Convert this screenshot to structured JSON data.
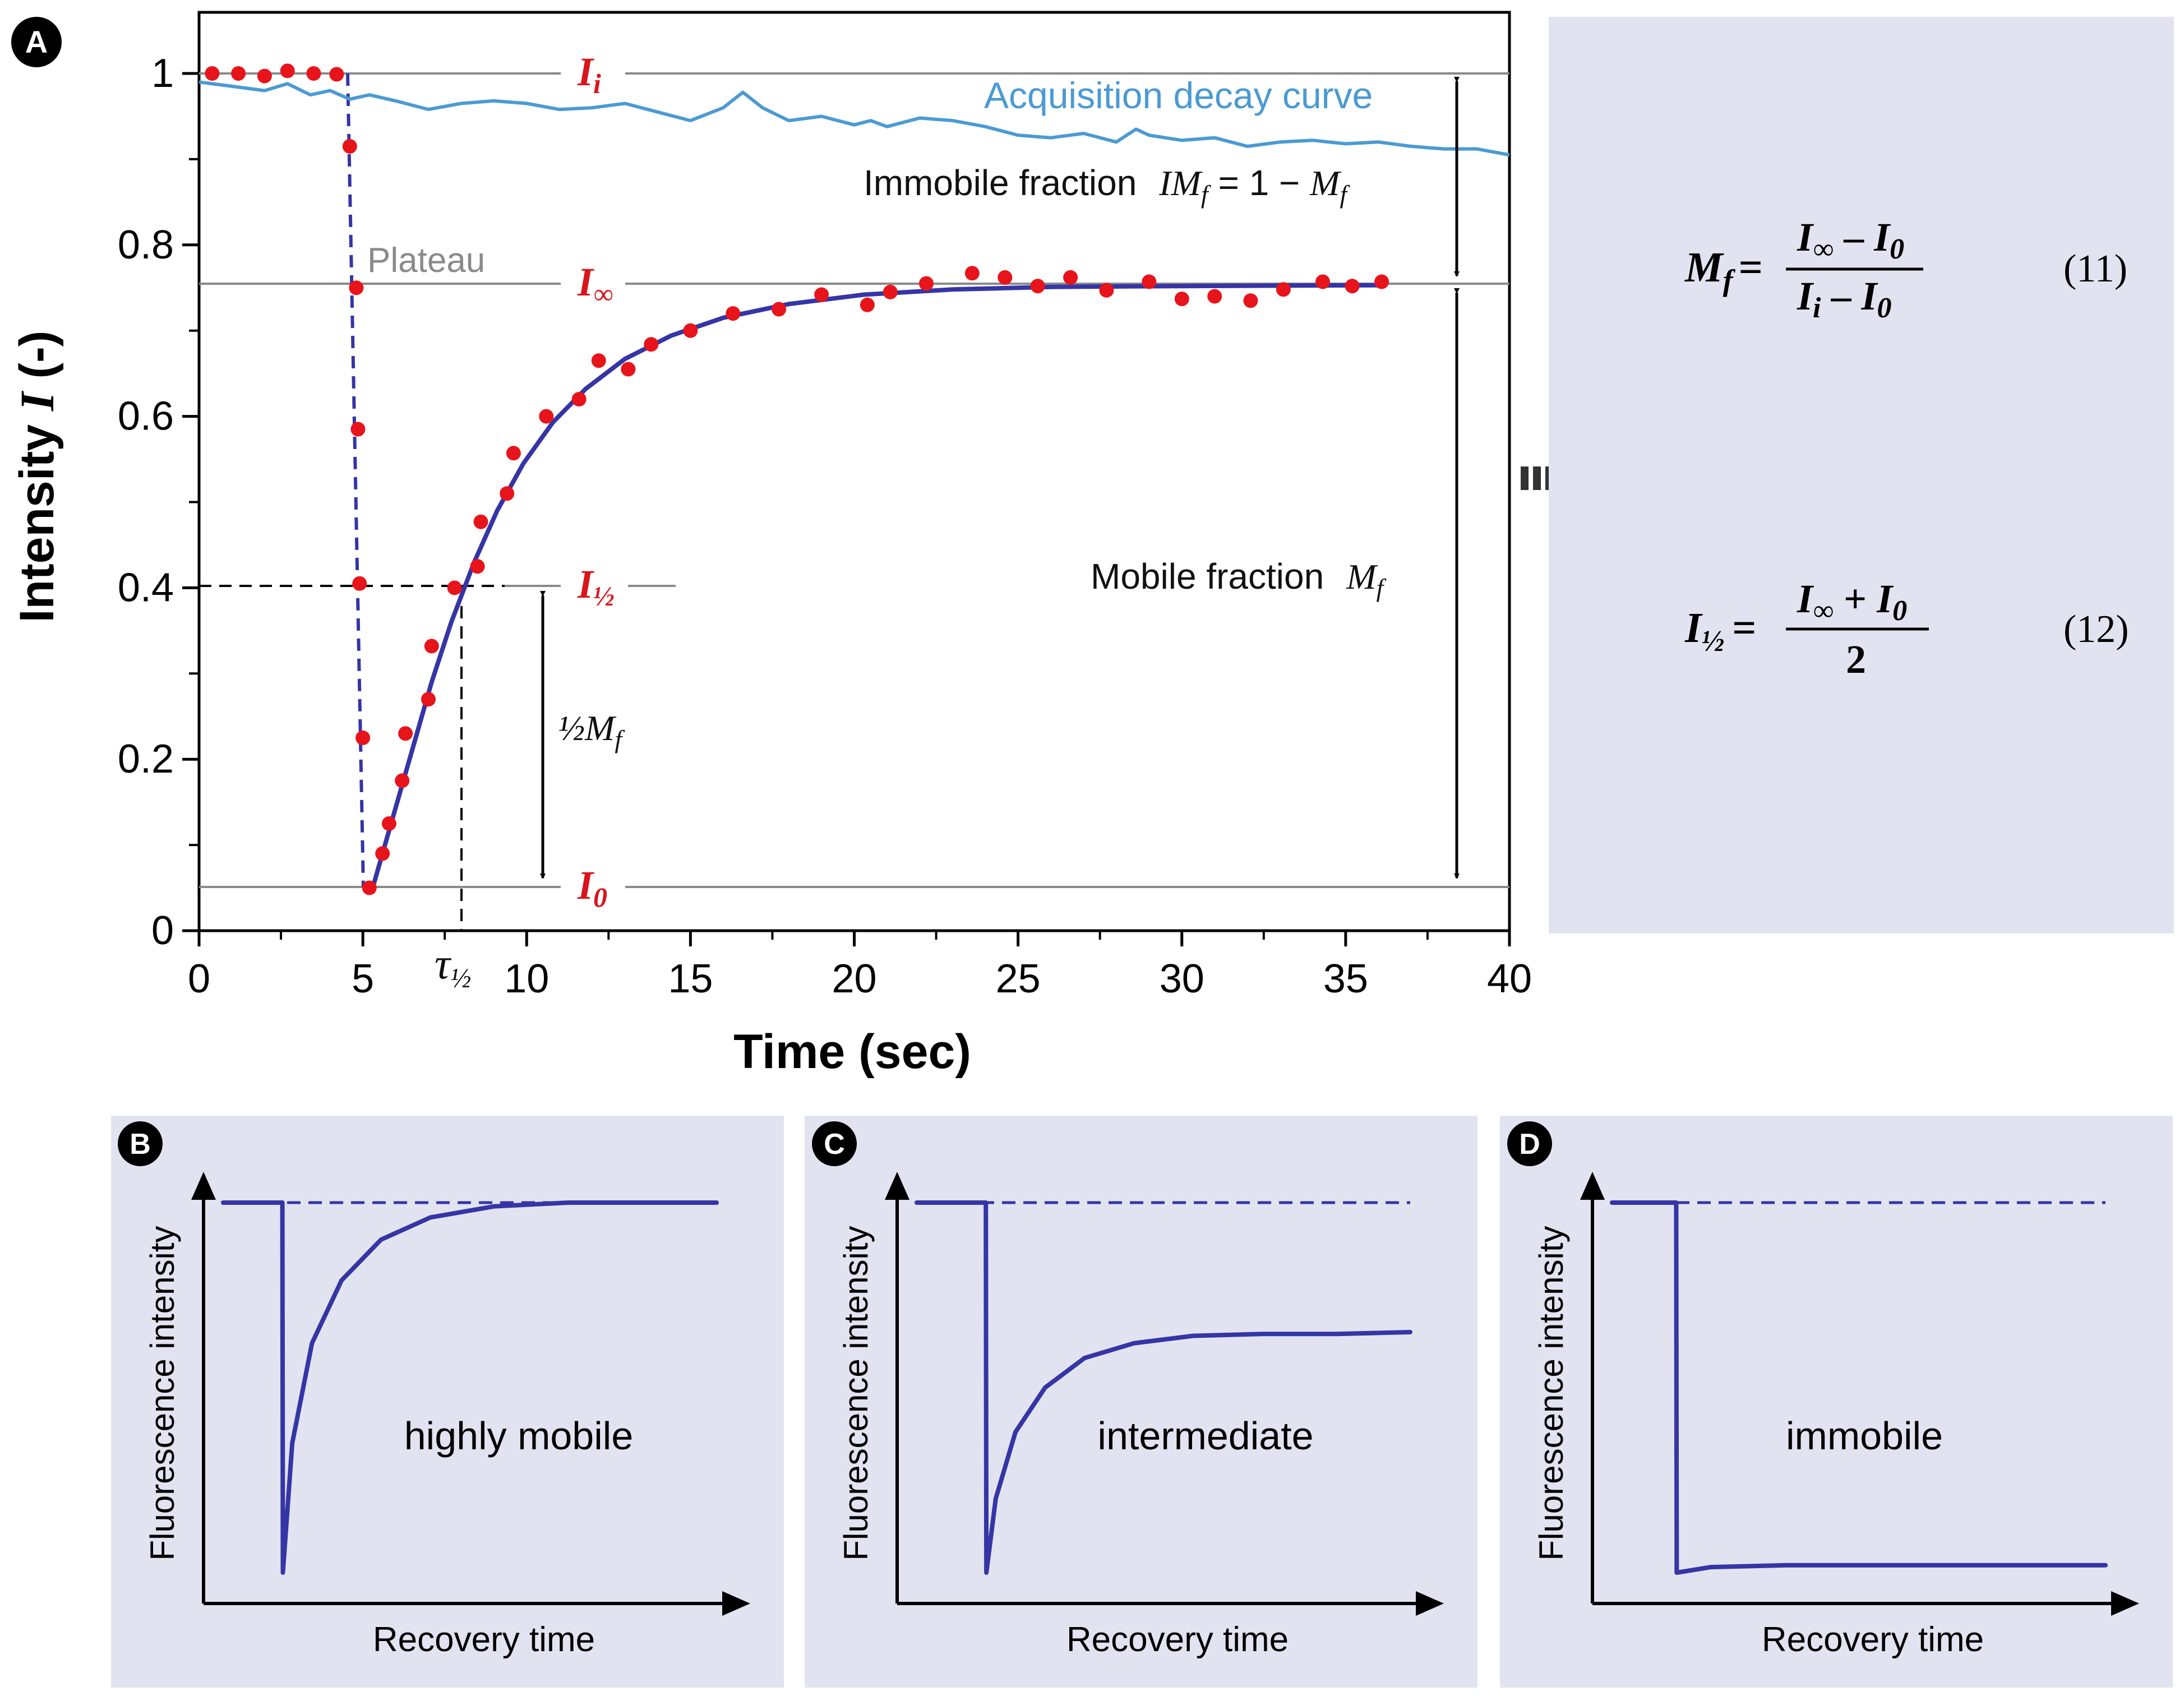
{
  "panel_labels": {
    "a": "A",
    "b": "B",
    "c": "C",
    "d": "D"
  },
  "colors": {
    "data_points": "#e8141b",
    "fit_curve": "#3535a5",
    "decay_curve": "#4b9ad3",
    "reference_lines": "#8a8a8a",
    "panel_background": "#e1e4f0",
    "red_label": "#d9151c"
  },
  "main_chart": {
    "xlabel": "Time (sec)",
    "ylabel_text": "Intensity ",
    "ylabel_symbol": "I",
    "ylabel_unit": " (-)",
    "x_ticks": [
      "0",
      "5",
      "10",
      "15",
      "20",
      "25",
      "30",
      "35",
      "40"
    ],
    "y_ticks": [
      "0",
      "0.2",
      "0.4",
      "0.6",
      "0.8",
      "1"
    ],
    "annotations": {
      "decay_curve_label": "Acquisition decay curve",
      "plateau": "Plateau",
      "immobile_text": "Immobile fraction",
      "immobile_im": "IM",
      "immobile_sub": "f",
      "immobile_eq": " = 1 − ",
      "immobile_m": "M",
      "immobile_m_sub": "f",
      "mobile_text": "Mobile fraction",
      "mobile_m": "M",
      "mobile_sub": "f",
      "half_frac": "½",
      "half_m": "M",
      "half_sub": "f",
      "tau": "τ",
      "tau_sub": "½",
      "i_i": "I",
      "i_i_sub": "i",
      "i_inf": "I",
      "i_inf_sub": "∞",
      "i_half": "I",
      "i_half_sub": "½",
      "i_0": "I",
      "i_0_sub": "0"
    }
  },
  "chart_data": [
    {
      "type": "scatter",
      "xlabel": "Time (sec)",
      "ylabel": "Intensity I (-)",
      "xlim": [
        0,
        40
      ],
      "ylim": [
        0,
        1.07
      ],
      "grid": false,
      "series": [
        {
          "x": [
            0.4,
            1.2,
            2.0,
            2.7,
            3.5,
            4.2,
            4.6,
            4.8,
            4.85,
            4.9,
            5.0,
            5.2,
            5.6,
            5.8,
            6.2,
            6.3,
            7.0,
            7.1,
            7.8,
            8.5,
            8.6,
            9.4,
            9.6,
            10.6,
            11.6,
            12.2,
            13.1,
            13.8,
            15.0,
            16.3,
            17.7,
            19.0,
            20.4,
            21.1,
            22.2,
            23.6,
            24.6,
            25.6,
            26.6,
            27.7,
            29.0,
            30.0,
            31.0,
            32.1,
            33.1,
            34.3,
            35.2,
            36.1
          ],
          "y": [
            1.0,
            1.0,
            0.997,
            1.003,
            1.0,
            0.999,
            0.915,
            0.75,
            0.585,
            0.405,
            0.225,
            0.05,
            0.09,
            0.125,
            0.175,
            0.23,
            0.27,
            0.332,
            0.4,
            0.425,
            0.477,
            0.51,
            0.557,
            0.6,
            0.62,
            0.665,
            0.655,
            0.684,
            0.7,
            0.72,
            0.725,
            0.742,
            0.73,
            0.745,
            0.755,
            0.767,
            0.762,
            0.752,
            0.762,
            0.747,
            0.757,
            0.737,
            0.74,
            0.735,
            0.748,
            0.757,
            0.752,
            0.757
          ]
        },
        {
          "type": "line",
          "x": [
            5.3,
            5.9,
            6.5,
            7.1,
            7.7,
            8.4,
            9.1,
            9.9,
            10.8,
            11.8,
            13.0,
            14.4,
            16.0,
            18.0,
            20.3,
            23.0,
            26.0,
            30.0,
            36.0
          ],
          "y": [
            0.05,
            0.13,
            0.21,
            0.29,
            0.36,
            0.43,
            0.49,
            0.545,
            0.593,
            0.632,
            0.667,
            0.694,
            0.715,
            0.731,
            0.742,
            0.748,
            0.751,
            0.752,
            0.753
          ]
        },
        {
          "name": "Acquisition decay curve",
          "type": "line",
          "x": [
            0,
            1,
            2,
            2.7,
            3.4,
            4,
            4.6,
            5.2,
            6,
            7,
            8,
            9,
            10,
            11,
            12,
            13,
            14,
            15,
            16,
            16.6,
            17.2,
            18,
            19,
            20,
            20.5,
            21,
            22,
            23,
            24,
            25,
            26,
            27,
            28,
            28.6,
            29,
            30,
            31,
            32,
            33,
            34,
            35,
            36,
            37,
            38,
            39,
            40
          ],
          "y": [
            0.99,
            0.985,
            0.98,
            0.988,
            0.975,
            0.98,
            0.97,
            0.975,
            0.968,
            0.958,
            0.965,
            0.968,
            0.965,
            0.958,
            0.96,
            0.965,
            0.955,
            0.945,
            0.96,
            0.978,
            0.96,
            0.945,
            0.95,
            0.94,
            0.945,
            0.938,
            0.948,
            0.945,
            0.938,
            0.928,
            0.925,
            0.93,
            0.92,
            0.935,
            0.928,
            0.922,
            0.925,
            0.915,
            0.92,
            0.922,
            0.918,
            0.92,
            0.915,
            0.912,
            0.912,
            0.905
          ]
        }
      ],
      "reference_lines": {
        "I_i": 1.0,
        "I_inf": 0.753,
        "I_half": 0.4,
        "I_0": 0.05,
        "t_bleach": 5.0,
        "tau_half": 8.0
      }
    },
    {
      "type": "line",
      "title": "highly mobile",
      "xlabel": "Recovery time",
      "ylabel": "Fluorescence intensity",
      "x": [
        0,
        0.12,
        0.121,
        0.14,
        0.18,
        0.24,
        0.32,
        0.42,
        0.55,
        0.7,
        0.85,
        1.0
      ],
      "y": [
        1.0,
        1.0,
        0.0,
        0.35,
        0.62,
        0.79,
        0.9,
        0.96,
        0.99,
        1.0,
        1.0,
        1.0
      ],
      "reference_level": 1.0
    },
    {
      "type": "line",
      "title": "intermediate",
      "xlabel": "Recovery time",
      "ylabel": "Fluorescence intensity",
      "x": [
        0,
        0.14,
        0.141,
        0.16,
        0.2,
        0.26,
        0.34,
        0.44,
        0.56,
        0.7,
        0.85,
        1.0
      ],
      "y": [
        1.0,
        1.0,
        0.0,
        0.2,
        0.38,
        0.5,
        0.58,
        0.62,
        0.64,
        0.645,
        0.645,
        0.65
      ],
      "reference_level": 1.0
    },
    {
      "type": "line",
      "title": "immobile",
      "xlabel": "Recovery time",
      "ylabel": "Fluorescence intensity",
      "x": [
        0,
        0.13,
        0.131,
        0.2,
        0.35,
        0.6,
        1.0
      ],
      "y": [
        1.0,
        1.0,
        0.0,
        0.015,
        0.02,
        0.02,
        0.02
      ],
      "reference_level": 1.0
    }
  ],
  "equations": {
    "eq11_lhs": "M",
    "eq11_lhs_sub": "f",
    "eq11_eq": "=",
    "eq11_num_i": "I",
    "eq11_num_i_sub": "∞",
    "eq11_num_op": " – ",
    "eq11_num_i0": "I",
    "eq11_num_i0_sub": "0",
    "eq11_den_i": "I",
    "eq11_den_i_sub": "i",
    "eq11_den_op": " – ",
    "eq11_den_i0": "I",
    "eq11_den_i0_sub": "0",
    "eq11_number": "(11)",
    "eq12_lhs": "I",
    "eq12_lhs_sub": "½",
    "eq12_eq": "=",
    "eq12_num_i": "I",
    "eq12_num_i_sub": "∞",
    "eq12_num_op": " + ",
    "eq12_num_i0": "I",
    "eq12_num_i0_sub": "0",
    "eq12_den": "2",
    "eq12_number": "(12)"
  }
}
